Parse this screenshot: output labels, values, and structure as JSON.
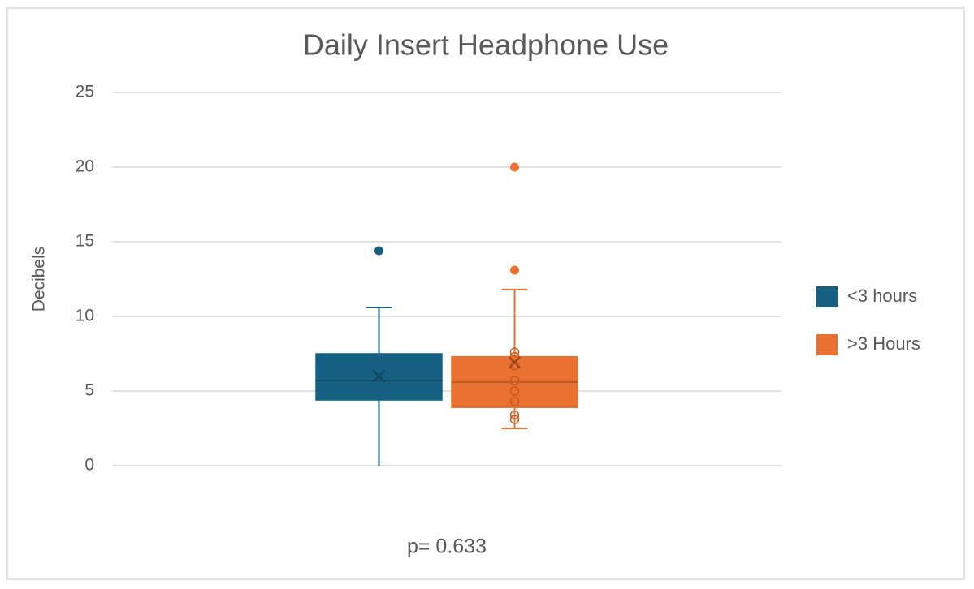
{
  "chart_data": {
    "type": "box",
    "title": "Daily Insert Headphone Use",
    "ylabel": "Decibels",
    "xlabel": "p= 0.633",
    "ylim": [
      0,
      25
    ],
    "yticks": [
      0,
      5,
      10,
      15,
      20,
      25
    ],
    "grid": true,
    "legend": "right",
    "series": [
      {
        "name": "<3 hours",
        "color": "#156082",
        "min": 0,
        "q1": 4.4,
        "median": 5.7,
        "q3": 7.5,
        "max": 10.6,
        "mean": 6.0,
        "outliers": [
          14.4
        ],
        "points": []
      },
      {
        "name": ">3 Hours",
        "color": "#e97132",
        "min": 2.5,
        "q1": 3.9,
        "median": 5.6,
        "q3": 7.3,
        "max": 11.8,
        "mean": 6.9,
        "outliers": [
          20,
          13.1
        ],
        "points": [
          3.1,
          3.4,
          4.3,
          5.0,
          5.7,
          6.7,
          7.3,
          7.6
        ]
      }
    ]
  }
}
